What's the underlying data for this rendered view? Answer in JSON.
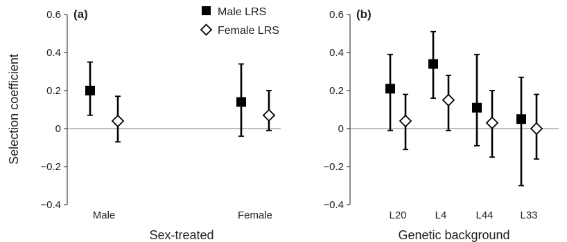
{
  "chart_data": [
    {
      "panel_label": "(a)",
      "type": "scatter",
      "xlabel": "Sex-treated",
      "ylabel": "Selection coefficient",
      "ylim": [
        -0.4,
        0.6
      ],
      "yticks": [
        "0.6",
        "0.4",
        "0.2",
        "0",
        "−0.2",
        "−0.4"
      ],
      "ytick_values": [
        0.6,
        0.4,
        0.2,
        0,
        -0.2,
        -0.4
      ],
      "categories": [
        "Male",
        "Female"
      ],
      "series": [
        {
          "name": "Male LRS",
          "marker": "filled-square",
          "values": [
            0.2,
            0.14
          ],
          "err_low": [
            0.07,
            -0.04
          ],
          "err_high": [
            0.35,
            0.34
          ]
        },
        {
          "name": "Female LRS",
          "marker": "open-diamond",
          "values": [
            0.04,
            0.07
          ],
          "err_low": [
            -0.07,
            -0.01
          ],
          "err_high": [
            0.17,
            0.2
          ]
        }
      ],
      "reference_line": 0,
      "grid": false,
      "legend": "top-right"
    },
    {
      "panel_label": "(b)",
      "type": "scatter",
      "xlabel": "Genetic background",
      "ylabel": "",
      "ylim": [
        -0.4,
        0.6
      ],
      "yticks": [
        "0.6",
        "0.4",
        "0.2",
        "0",
        "−0.2",
        "−0.4"
      ],
      "ytick_values": [
        0.6,
        0.4,
        0.2,
        0,
        -0.2,
        -0.4
      ],
      "categories": [
        "L20",
        "L4",
        "L44",
        "L33"
      ],
      "series": [
        {
          "name": "Male LRS",
          "marker": "filled-square",
          "values": [
            0.21,
            0.34,
            0.11,
            0.05
          ],
          "err_low": [
            -0.01,
            0.16,
            -0.09,
            -0.3
          ],
          "err_high": [
            0.39,
            0.51,
            0.39,
            0.27
          ]
        },
        {
          "name": "Female LRS",
          "marker": "open-diamond",
          "values": [
            0.04,
            0.15,
            0.03,
            0.0
          ],
          "err_low": [
            -0.11,
            -0.01,
            -0.15,
            -0.16
          ],
          "err_high": [
            0.18,
            0.28,
            0.2,
            0.18
          ]
        }
      ],
      "reference_line": 0,
      "grid": false,
      "legend": "none"
    }
  ],
  "legend": {
    "entries": [
      {
        "label": "Male LRS",
        "marker": "filled-square"
      },
      {
        "label": "Female LRS",
        "marker": "open-diamond"
      }
    ]
  },
  "colors": {
    "marks": "#000000",
    "axis": "#4d4d4d",
    "zero_line": "#9a9a9a",
    "text": "#222222"
  }
}
